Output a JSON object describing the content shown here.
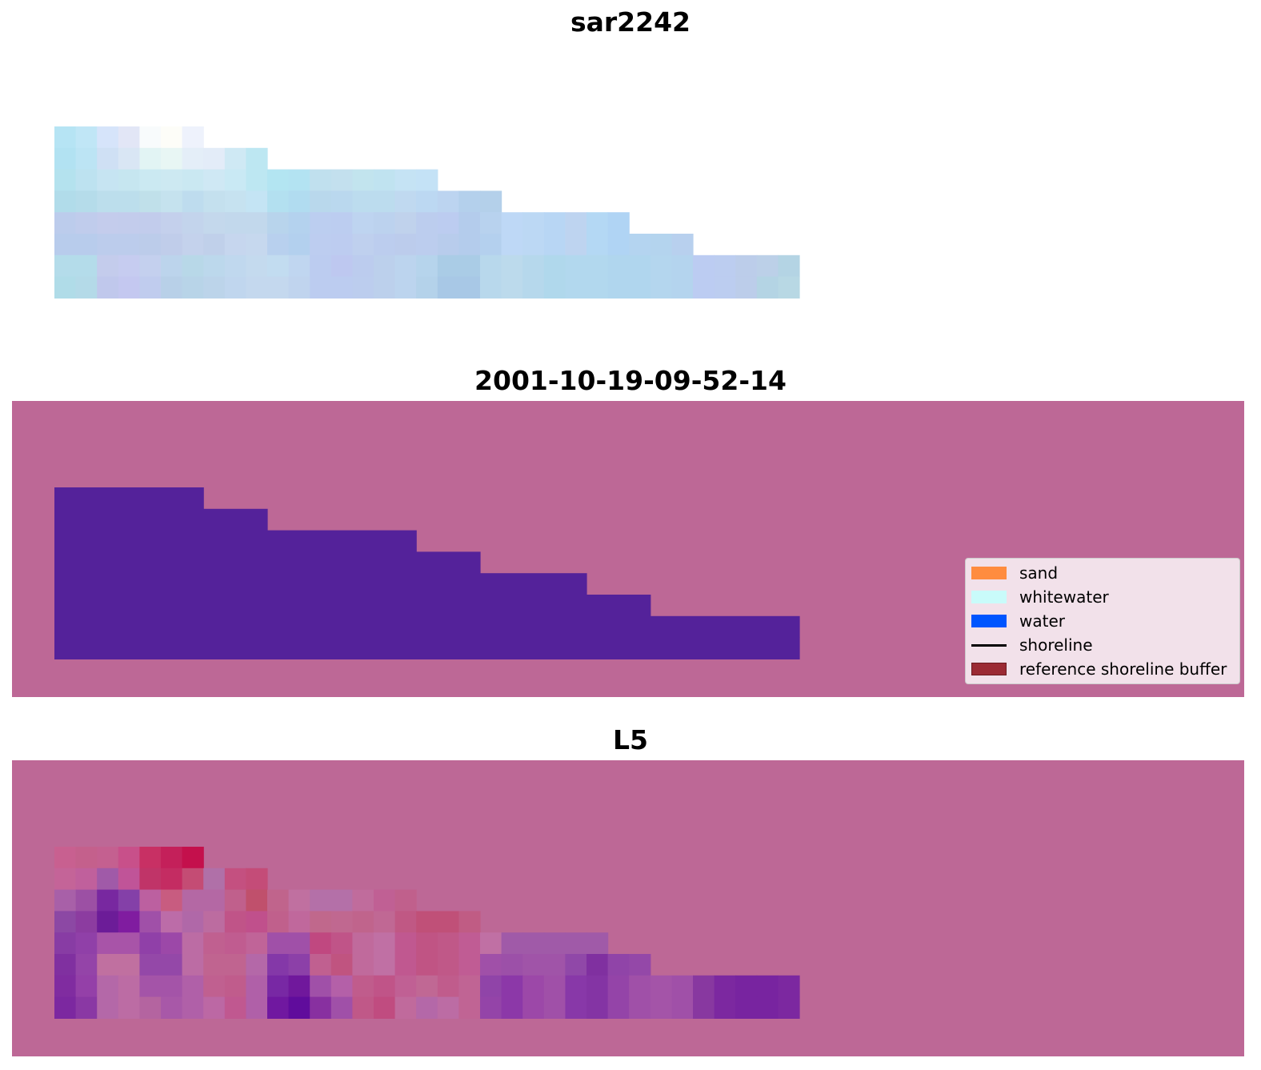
{
  "chart_data": [
    {
      "type": "heatmap",
      "title": "sar2242",
      "colors": {
        "row0": [
          "#b6e4f4",
          "#c0e6f6",
          "#d6e4fa",
          "#e2e6f6",
          "#f8fbfc",
          "#fdfdf8",
          "#eef2fc",
          "none",
          "none",
          "none",
          "none",
          "none",
          "none",
          "none",
          "none",
          "none",
          "none",
          "none",
          "none",
          "none",
          "none",
          "none",
          "none",
          "none",
          "none",
          "none",
          "none",
          "none",
          "none",
          "none",
          "none",
          "none",
          "none",
          "none",
          "none"
        ],
        "row1": [
          "#b2e2f2",
          "#bce4f4",
          "#cfe0f4",
          "#d9e6f4",
          "#e2f4f4",
          "#e8f6f4",
          "#e4eef8",
          "#e3ecf8",
          "#cfe9f4",
          "#bde7f2",
          "none",
          "none",
          "none",
          "none",
          "none",
          "none",
          "none",
          "none",
          "none",
          "none",
          "none",
          "none",
          "none",
          "none",
          "none",
          "none",
          "none",
          "none",
          "none",
          "none",
          "none",
          "none",
          "none",
          "none",
          "none"
        ],
        "row2": [
          "#b4e2ee",
          "#bde2f0",
          "#c6e4f2",
          "#c6e6f0",
          "#cbe9f2",
          "#cde9f2",
          "#cae8f2",
          "#cfe8f4",
          "#c9e9f4",
          "#bde7f2",
          "#b3e5f2",
          "#b3e3f2",
          "#c0e0ee",
          "#c3e0ee",
          "#c2e4ee",
          "#c0e3f0",
          "#c5e3f4",
          "#c4e2f6",
          "none",
          "none",
          "none",
          "none",
          "none",
          "none",
          "none",
          "none",
          "none",
          "none",
          "none",
          "none",
          "none",
          "none",
          "none",
          "none",
          "none"
        ],
        "row3": [
          "#b1dcea",
          "#b5dcea",
          "#bcdeec",
          "#bcdeec",
          "#c0e0ea",
          "#c5e2ee",
          "#bedcee",
          "#c4e0ee",
          "#c6e2f0",
          "#c4e4f4",
          "#b3e0f0",
          "#b1dcf0",
          "#b9d8ec",
          "#bad8ee",
          "#bcdcee",
          "#bcdcee",
          "#c0d9f0",
          "#bcd8f2",
          "#bcd4f0",
          "#b4d0ec",
          "#b4d0ea",
          "none",
          "none",
          "none",
          "none",
          "none",
          "none",
          "none",
          "none",
          "none",
          "none",
          "none",
          "none",
          "none",
          "none"
        ],
        "row4": [
          "#bcccec",
          "#c0ccec",
          "#c4ccec",
          "#c3ccec",
          "#c2ccec",
          "#c4d0ec",
          "#c3d4ec",
          "#c4d8ec",
          "#c2d8ec",
          "#c2d8ec",
          "#b8d4ec",
          "#b4d2ee",
          "#bccef0",
          "#bccdf0",
          "#bed4f0",
          "#bcd2ee",
          "#c0d2ec",
          "#bccdee",
          "#bcccf0",
          "#b4ccec",
          "#b8d2ee",
          "#bed8f6",
          "#bcd8f4",
          "#b8d6f4",
          "#bed4f0",
          "#b4d8f4",
          "#b0d4f4",
          "none",
          "none",
          "none",
          "none",
          "none",
          "none",
          "none",
          "none"
        ],
        "row5": [
          "#b8ccec",
          "#b8ccec",
          "#bcccec",
          "#bcccec",
          "#bcccea",
          "#c0cdea",
          "#c4d2ec",
          "#c0d0ea",
          "#c6d6ee",
          "#c6d8ee",
          "#b8d0ee",
          "#b3d0ee",
          "#bdcdf0",
          "#bdccf0",
          "#bfd0ee",
          "#bccdee",
          "#bcccec",
          "#bccdee",
          "#b8ccec",
          "#b4ccec",
          "#b4d0ee",
          "#bed8f6",
          "#bcd8f4",
          "#b8d6f4",
          "#bed4f0",
          "#b4d8f4",
          "#b0d4f4",
          "#b4d4f0",
          "#b4d4ee",
          "#b8d0ee",
          "none",
          "none",
          "none",
          "none",
          "none"
        ],
        "row6": [
          "#b4dcea",
          "#b4dcea",
          "#c4ccec",
          "#c6ccf0",
          "#c4d0ee",
          "#bcd4ec",
          "#b8d8e8",
          "#bcd8ec",
          "#c0d8ee",
          "#c4daee",
          "#c2dcf0",
          "#c0d6f0",
          "#bcccf0",
          "#bec8f0",
          "#bcccee",
          "#bcd0ec",
          "#bcd4ee",
          "#b6d4ec",
          "#aacce6",
          "#aacce6",
          "#b8d8ec",
          "#bcdaec",
          "#b6d8ec",
          "#b0d8ec",
          "#b2d8ee",
          "#b2d8ee",
          "#b0d6ee",
          "#b0d6ee",
          "#b4d6ee",
          "#b4d4ee",
          "#bcccf2",
          "#bccdf0",
          "#bccdea",
          "#bcd0e8",
          "#b4d4e4"
        ],
        "row7": [
          "#b0dce8",
          "#b4dae8",
          "#c0c8ec",
          "#c4c8f0",
          "#c0ccee",
          "#b8d0e8",
          "#b8d4e8",
          "#bcd4ea",
          "#c0d6ee",
          "#c4d8ee",
          "#c4d8ee",
          "#c0d4ee",
          "#bcccf0",
          "#bcccf0",
          "#bccdee",
          "#bcd0ec",
          "#bcd4ee",
          "#b4d2ea",
          "#a8c8e6",
          "#a8c8e6",
          "#b8d8ec",
          "#bcdaec",
          "#b6d8ec",
          "#b0d8ec",
          "#b2d8ee",
          "#b2d8ee",
          "#b0d6ee",
          "#b0d6ee",
          "#b4d6ee",
          "#b4d4ee",
          "#bcccf2",
          "#bccdf0",
          "#bccdea",
          "#b4d4e4",
          "#b8d8e4"
        ]
      },
      "mask": {
        "rows": 8,
        "row_lengths": [
          7,
          10,
          18,
          21,
          27,
          30,
          35,
          35
        ]
      }
    },
    {
      "type": "heatmap",
      "title": "2001-10-19-09-52-14",
      "background_color": "#bd6896",
      "water_color": "#54229a",
      "row_lengths": [
        7,
        10,
        17,
        20,
        25,
        28,
        35,
        35
      ]
    },
    {
      "type": "heatmap",
      "title": "L5",
      "background_color": "#bd6896",
      "colors": {
        "row0": [
          "#c86090",
          "#c4608c",
          "#c46090",
          "#c8508a",
          "#c83064",
          "#c4205a",
          "#c4104c",
          "none",
          "none",
          "none",
          "none",
          "none",
          "none",
          "none",
          "none",
          "none",
          "none",
          "none",
          "none",
          "none",
          "none",
          "none",
          "none",
          "none",
          "none",
          "none",
          "none",
          "none",
          "none",
          "none",
          "none",
          "none",
          "none",
          "none",
          "none"
        ],
        "row1": [
          "#c46498",
          "#c0609c",
          "#a05aa8",
          "#c05498",
          "#c03468",
          "#c42c62",
          "#c44c74",
          "#b070a8",
          "#c45080",
          "#c44c78",
          "none",
          "none",
          "none",
          "none",
          "none",
          "none",
          "none",
          "none",
          "none",
          "none",
          "none",
          "none",
          "none",
          "none",
          "none",
          "none",
          "none",
          "none",
          "none",
          "none",
          "none",
          "none",
          "none",
          "none",
          "none"
        ],
        "row2": [
          "#a860a8",
          "#9c50a4",
          "#7828a0",
          "#8440a8",
          "#bc60a0",
          "#c85c80",
          "#b468a4",
          "#b468a4",
          "#c0608c",
          "#c0506c",
          "#c0648c",
          "#c070a0",
          "#b470a8",
          "#b470a8",
          "#c06c9c",
          "#c06094",
          "#c0608c",
          "none",
          "none",
          "none",
          "none",
          "none",
          "none",
          "none",
          "none",
          "none",
          "none",
          "none",
          "none",
          "none",
          "none",
          "none",
          "none",
          "none",
          "none"
        ],
        "row3": [
          "#8c48a4",
          "#8c3ca0",
          "#6c1c98",
          "#801ca0",
          "#a050a8",
          "#bc6ca8",
          "#b068a8",
          "#bc6ca0",
          "#c05488",
          "#c0508c",
          "#c0608c",
          "#c0689c",
          "#c0688c",
          "#c06890",
          "#c0648c",
          "#c06894",
          "#c05884",
          "#c05078",
          "#c05078",
          "#c05c84",
          "none",
          "none",
          "none",
          "none",
          "none",
          "none",
          "none",
          "none",
          "none",
          "none",
          "none",
          "none",
          "none",
          "none",
          "none"
        ],
        "row4": [
          "#883ca4",
          "#9040a8",
          "#a854a8",
          "#a854a8",
          "#9040a8",
          "#9c48a8",
          "#bc6ca4",
          "#c06090",
          "#c05c90",
          "#c06498",
          "#a050a8",
          "#a050a8",
          "#c04880",
          "#c05488",
          "#c06a9c",
          "#c070a4",
          "#c05890",
          "#c05484",
          "#c05888",
          "#c05c94",
          "#c070a4",
          "#a05aa8",
          "#a05aa8",
          "#a05aa8",
          "#a05aa8",
          "#a05aa8",
          "none",
          "none",
          "none",
          "none",
          "none",
          "none",
          "none",
          "none",
          "none"
        ],
        "row5": [
          "#8030a0",
          "#9444a8",
          "#c070a0",
          "#c070a0",
          "#9448a8",
          "#9448a8",
          "#bc6ca4",
          "#c06490",
          "#c06490",
          "#b468a8",
          "#8438a8",
          "#8c40a8",
          "#c06090",
          "#c05480",
          "#c06a9c",
          "#c070a4",
          "#c05890",
          "#c05484",
          "#c05888",
          "#c05c94",
          "#a050a8",
          "#9c50a8",
          "#a054a8",
          "#a054a8",
          "#9048a8",
          "#8030a0",
          "#9044a8",
          "#9448a8",
          "none",
          "none",
          "none",
          "none",
          "none",
          "none",
          "none"
        ],
        "row6": [
          "#802ca0",
          "#9440a8",
          "#b468a8",
          "#bc6ca4",
          "#a454a8",
          "#a454a8",
          "#b060a8",
          "#c06090",
          "#c05c8c",
          "#b060a8",
          "#7828a4",
          "#70189c",
          "#a050a8",
          "#b460a8",
          "#c05c8c",
          "#c05488",
          "#c06094",
          "#c06894",
          "#c05c8c",
          "#c06494",
          "#9044a8",
          "#8c38a8",
          "#9c48a8",
          "#a050a8",
          "#8838a8",
          "#8434a4",
          "#9444a8",
          "#a050a8",
          "#a454a8",
          "#a050a8",
          "#8838a0",
          "#7c28a0",
          "#7824a0",
          "#7824a0",
          "#7c28a0"
        ],
        "row7": [
          "#7c28a0",
          "#8a38a4",
          "#b468a8",
          "#bc6ca4",
          "#b464a0",
          "#a858a8",
          "#b060a8",
          "#bc68a4",
          "#c05890",
          "#b060a8",
          "#7018a0",
          "#600c9c",
          "#8830a0",
          "#a050a8",
          "#c05888",
          "#c04c80",
          "#c06a9c",
          "#b468a8",
          "#bc6ca4",
          "#c06494",
          "#9444a8",
          "#8c38a8",
          "#9c48a8",
          "#a050a8",
          "#8838a8",
          "#8434a4",
          "#9444a8",
          "#a050a8",
          "#a454a8",
          "#a050a8",
          "#8838a0",
          "#7c28a0",
          "#7824a0",
          "#7824a0",
          "#7c28a0"
        ]
      },
      "mask": {
        "rows": 8,
        "row_lengths": [
          7,
          10,
          17,
          20,
          26,
          28,
          35,
          35
        ]
      }
    }
  ],
  "legend": {
    "items": [
      {
        "label": "sand",
        "kind": "patch",
        "color": "#ff8c3f"
      },
      {
        "label": "whitewater",
        "kind": "patch",
        "color": "#c9fbfa"
      },
      {
        "label": "water",
        "kind": "patch",
        "color": "#0055ff"
      },
      {
        "label": "shoreline",
        "kind": "line",
        "color": "#000000"
      },
      {
        "label": "reference shoreline buffer",
        "kind": "patch",
        "color": "#9b2a34"
      }
    ]
  }
}
